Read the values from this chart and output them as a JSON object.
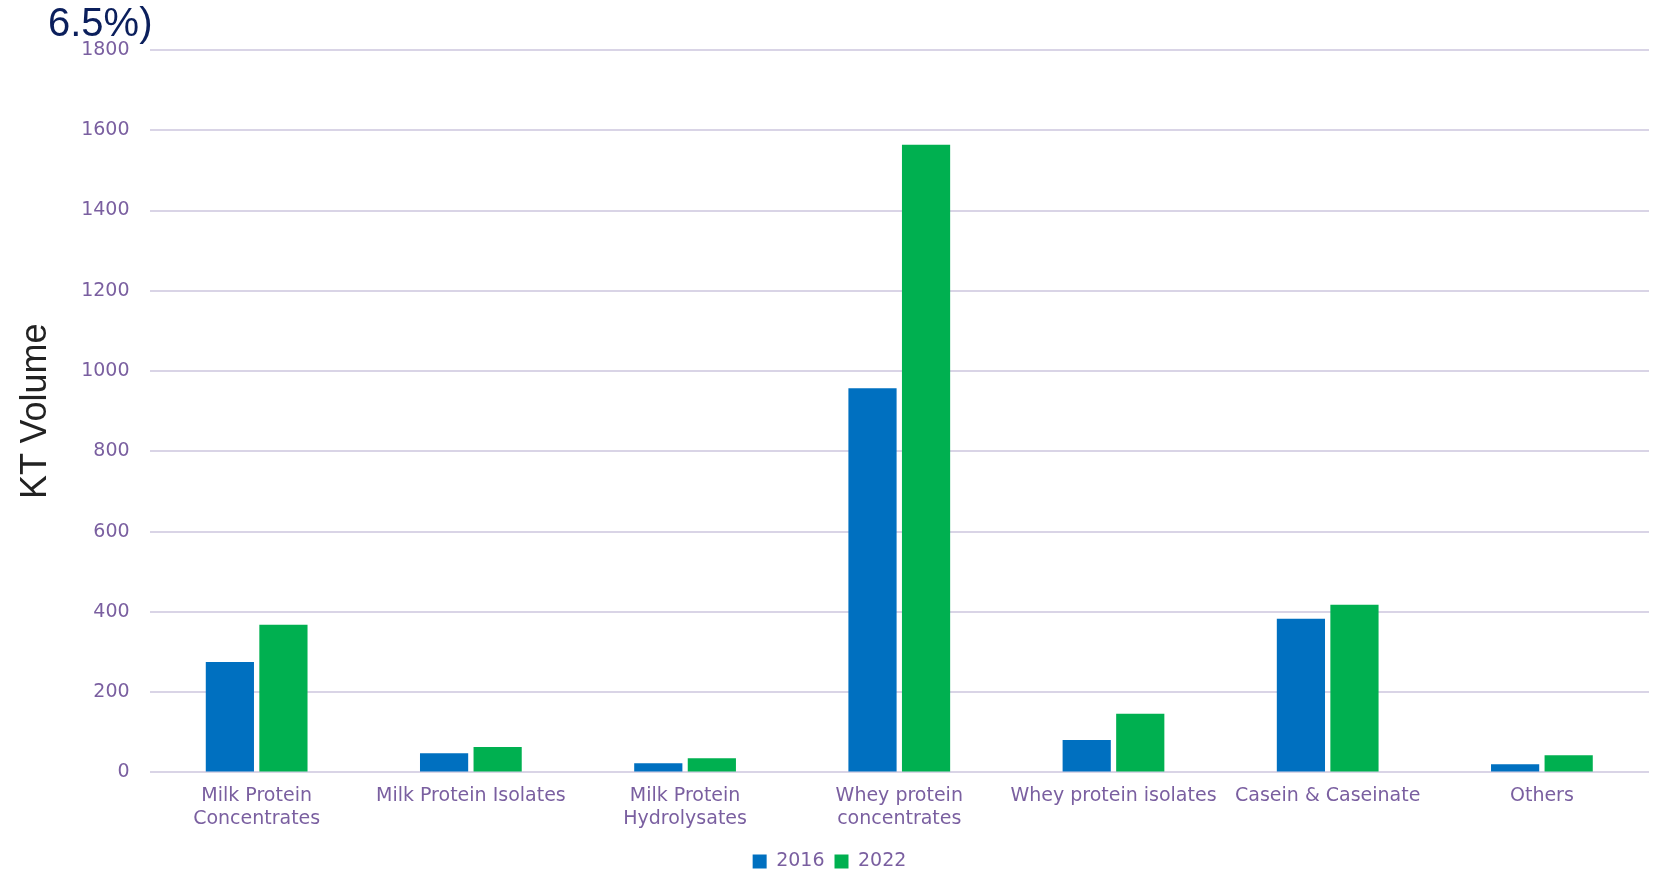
{
  "chart_data": {
    "type": "bar",
    "title": "6.5%)",
    "ylabel": "KT Volume",
    "categories": [
      [
        "Milk Protein",
        "Concentrates"
      ],
      "Milk Protein Isolates",
      [
        "Milk Protein",
        "Hydrolysates"
      ],
      [
        "Whey protein",
        "concentrates"
      ],
      "Whey protein isolates",
      "Casein & Caseinate",
      "Others"
    ],
    "series": [
      {
        "name": "2016",
        "color": "#0070c0",
        "values": [
          275,
          48,
          23,
          957,
          81,
          383,
          20
        ]
      },
      {
        "name": "2022",
        "color": "#00b050",
        "values": [
          368,
          63,
          35,
          1564,
          146,
          418,
          43
        ]
      }
    ],
    "ylim": [
      0,
      1800
    ],
    "yticks": [
      0,
      200,
      400,
      600,
      800,
      1000,
      1200,
      1400,
      1600,
      1800
    ],
    "grid": "y",
    "legend": "bottom"
  }
}
